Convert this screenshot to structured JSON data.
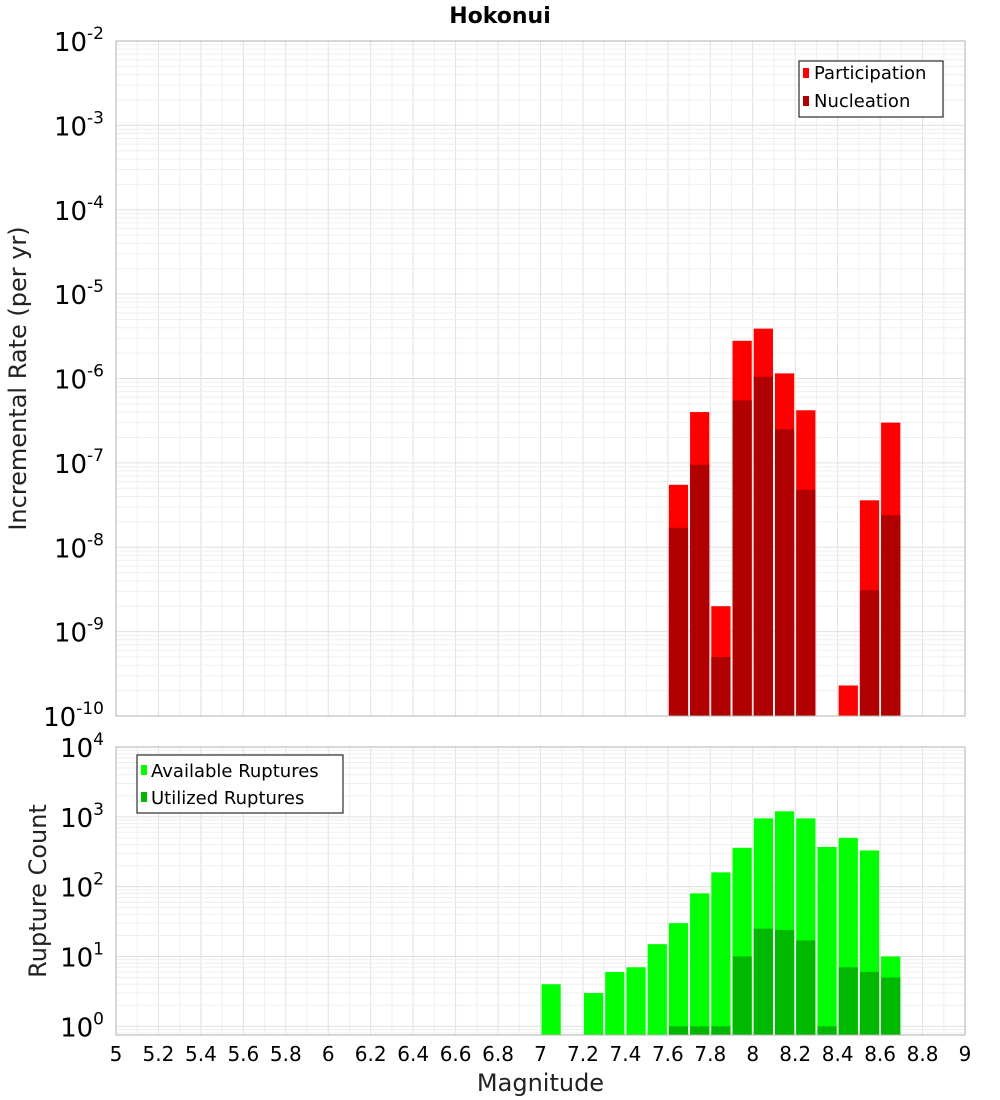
{
  "chart_data": [
    {
      "type": "bar",
      "title": "Hokonui",
      "xlabel": "",
      "ylabel": "Incremental Rate (per yr)",
      "yscale": "log",
      "ylim": [
        1e-10,
        0.01
      ],
      "y_tick_exponents": [
        "-10",
        "-9",
        "-8",
        "-7",
        "-6",
        "-5",
        "-4",
        "-3",
        "-2"
      ],
      "y_tick_base": "10",
      "xlim": [
        5,
        9
      ],
      "grid": true,
      "legend_position": "top-right",
      "bin_width": 0.1,
      "series": [
        {
          "name": "Participation",
          "color": "#ff0000",
          "x": [
            7.65,
            7.75,
            7.85,
            7.95,
            8.05,
            8.15,
            8.25,
            8.45,
            8.55,
            8.65
          ],
          "values": [
            5.5e-08,
            4e-07,
            2e-09,
            2.8e-06,
            3.9e-06,
            1.15e-06,
            4.2e-07,
            2.3e-10,
            3.6e-08,
            3e-07
          ]
        },
        {
          "name": "Nucleation",
          "color": "#b00000",
          "x": [
            7.65,
            7.75,
            7.85,
            7.95,
            8.05,
            8.15,
            8.25,
            8.55,
            8.65
          ],
          "values": [
            1.7e-08,
            9.5e-08,
            5e-10,
            5.5e-07,
            1.05e-06,
            2.5e-07,
            4.8e-08,
            3.1e-09,
            2.4e-08
          ]
        }
      ]
    },
    {
      "type": "bar",
      "title": "",
      "xlabel": "Magnitude",
      "ylabel": "Rupture Count",
      "yscale": "log",
      "ylim": [
        0.75,
        10000
      ],
      "y_tick_values": [
        1,
        10,
        100,
        1000,
        10000
      ],
      "y_tick_exponents": [
        "0",
        "1",
        "2",
        "3",
        "4"
      ],
      "y_tick_base": "10",
      "xlim": [
        5,
        9
      ],
      "x_ticks": [
        "5",
        "5.2",
        "5.4",
        "5.6",
        "5.8",
        "6",
        "6.2",
        "6.4",
        "6.6",
        "6.8",
        "7",
        "7.2",
        "7.4",
        "7.6",
        "7.8",
        "8",
        "8.2",
        "8.4",
        "8.6",
        "8.8",
        "9"
      ],
      "grid": true,
      "legend_position": "top-left",
      "bin_width": 0.1,
      "series": [
        {
          "name": "Available Ruptures",
          "color": "#00ff00",
          "x": [
            7.05,
            7.25,
            7.35,
            7.45,
            7.55,
            7.65,
            7.75,
            7.85,
            7.95,
            8.05,
            8.15,
            8.25,
            8.35,
            8.45,
            8.55,
            8.65
          ],
          "values": [
            4,
            3,
            6,
            7,
            15,
            30,
            80,
            160,
            360,
            950,
            1200,
            950,
            370,
            500,
            330,
            10
          ]
        },
        {
          "name": "Utilized Ruptures",
          "color": "#00b800",
          "x": [
            7.65,
            7.75,
            7.85,
            7.95,
            8.05,
            8.15,
            8.25,
            8.35,
            8.45,
            8.55,
            8.65
          ],
          "values": [
            1,
            1,
            1,
            10,
            25,
            24,
            17,
            1,
            7,
            6,
            5
          ]
        }
      ]
    }
  ]
}
